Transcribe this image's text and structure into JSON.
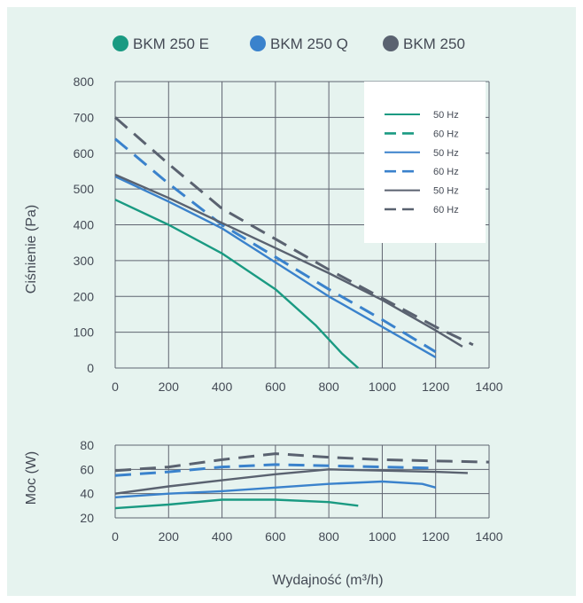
{
  "colors": {
    "background": "#e6f3ef",
    "grid": "#5f6470",
    "text": "#444a55",
    "legend_box": "#ffffff",
    "teal": "#1a9a82",
    "blue": "#3a82cc",
    "slate": "#5a6270"
  },
  "models": [
    {
      "name": "BKM 250 E",
      "color": "#1a9a82"
    },
    {
      "name": "BKM 250 Q",
      "color": "#3a82cc"
    },
    {
      "name": "BKM 250",
      "color": "#5a6270"
    }
  ],
  "x_axis_label": "Wydajność (m³/h)",
  "chart_data": [
    {
      "type": "line",
      "ylabel": "Ciśnienie (Pa)",
      "xlabel": "Wydajność (m³/h)",
      "xlim": [
        0,
        1400
      ],
      "ylim": [
        0,
        800
      ],
      "xticks": [
        "0",
        "200",
        "400",
        "600",
        "800",
        "1000",
        "1200",
        "1400"
      ],
      "yticks": [
        "0",
        "100",
        "200",
        "300",
        "400",
        "500",
        "600",
        "700",
        "800"
      ],
      "grid": true,
      "legend_position": "top-right",
      "series": [
        {
          "name": "50 Hz",
          "model": "BKM 250 E",
          "color": "#1a9a82",
          "dashed": false,
          "x": [
            0,
            200,
            400,
            600,
            750,
            850,
            910
          ],
          "y": [
            470,
            400,
            320,
            220,
            120,
            40,
            0
          ]
        },
        {
          "name": "60 Hz",
          "model": "BKM 250 E",
          "color": "#1a9a82",
          "dashed": true,
          "x": [],
          "y": []
        },
        {
          "name": "50 Hz",
          "model": "BKM 250 Q",
          "color": "#3a82cc",
          "dashed": false,
          "x": [
            0,
            200,
            400,
            600,
            800,
            1000,
            1200
          ],
          "y": [
            535,
            465,
            390,
            295,
            200,
            115,
            30
          ]
        },
        {
          "name": "60 Hz",
          "model": "BKM 250 Q",
          "color": "#3a82cc",
          "dashed": true,
          "x": [
            0,
            200,
            400,
            600,
            800,
            1000,
            1200
          ],
          "y": [
            640,
            515,
            400,
            310,
            220,
            135,
            45
          ]
        },
        {
          "name": "50 Hz",
          "model": "BKM 250",
          "color": "#5a6270",
          "dashed": false,
          "x": [
            0,
            200,
            400,
            600,
            800,
            1000,
            1200,
            1300
          ],
          "y": [
            540,
            475,
            405,
            335,
            265,
            190,
            105,
            60
          ]
        },
        {
          "name": "60 Hz",
          "model": "BKM 250",
          "color": "#5a6270",
          "dashed": true,
          "x": [
            0,
            200,
            400,
            600,
            800,
            1000,
            1200,
            1340
          ],
          "y": [
            700,
            570,
            445,
            360,
            275,
            195,
            115,
            65
          ]
        }
      ]
    },
    {
      "type": "line",
      "ylabel": "Moc (W)",
      "xlabel": "Wydajność (m³/h)",
      "xlim": [
        0,
        1400
      ],
      "ylim": [
        20,
        80
      ],
      "xticks": [
        "0",
        "200",
        "400",
        "600",
        "800",
        "1000",
        "1200",
        "1400"
      ],
      "yticks": [
        "20",
        "40",
        "60",
        "80"
      ],
      "grid": true,
      "series": [
        {
          "name": "50 Hz",
          "model": "BKM 250 E",
          "color": "#1a9a82",
          "dashed": false,
          "x": [
            0,
            200,
            400,
            600,
            800,
            910
          ],
          "y": [
            28,
            31,
            35,
            35,
            33,
            30
          ]
        },
        {
          "name": "50 Hz",
          "model": "BKM 250 Q",
          "color": "#3a82cc",
          "dashed": false,
          "x": [
            0,
            200,
            400,
            600,
            800,
            1000,
            1150,
            1200
          ],
          "y": [
            37,
            40,
            42,
            45,
            48,
            50,
            48,
            45
          ]
        },
        {
          "name": "60 Hz",
          "model": "BKM 250 Q",
          "color": "#3a82cc",
          "dashed": true,
          "x": [
            0,
            200,
            400,
            600,
            800,
            1000,
            1200
          ],
          "y": [
            55,
            58,
            62,
            64,
            63,
            62,
            61
          ]
        },
        {
          "name": "50 Hz",
          "model": "BKM 250",
          "color": "#5a6270",
          "dashed": false,
          "x": [
            0,
            200,
            400,
            600,
            800,
            1000,
            1200,
            1320
          ],
          "y": [
            40,
            46,
            51,
            56,
            60,
            59,
            58,
            57
          ]
        },
        {
          "name": "60 Hz",
          "model": "BKM 250",
          "color": "#5a6270",
          "dashed": true,
          "x": [
            0,
            200,
            400,
            600,
            800,
            1000,
            1200,
            1400
          ],
          "y": [
            59,
            62,
            68,
            73,
            70,
            68,
            67,
            66
          ]
        }
      ]
    }
  ]
}
